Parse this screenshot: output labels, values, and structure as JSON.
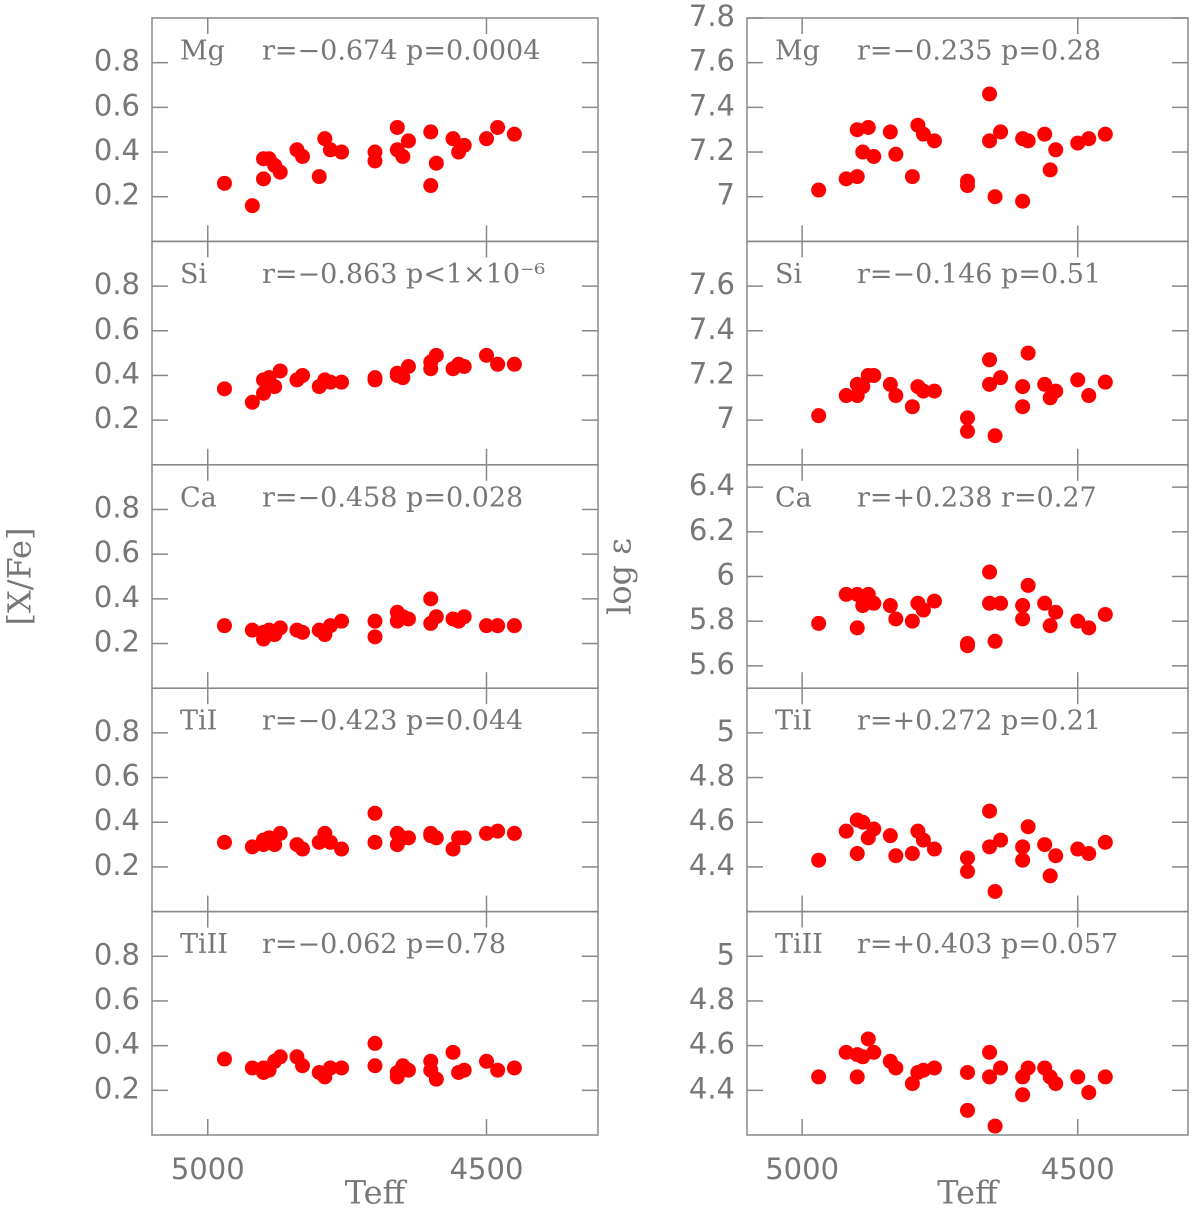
{
  "chart_data": [
    {
      "type": "scatter",
      "label": "Mg",
      "stats": "r=−0.674  p=0.0004",
      "color": "#ff0000",
      "x": [
        4970,
        4920,
        4900,
        4900,
        4890,
        4880,
        4870,
        4840,
        4830,
        4800,
        4790,
        4780,
        4760,
        4700,
        4700,
        4660,
        4660,
        4650,
        4640,
        4600,
        4600,
        4590,
        4560,
        4550,
        4540,
        4500,
        4480,
        4450
      ],
      "values": [
        0.26,
        0.16,
        0.28,
        0.37,
        0.37,
        0.34,
        0.31,
        0.41,
        0.38,
        0.29,
        0.46,
        0.41,
        0.4,
        0.4,
        0.36,
        0.51,
        0.41,
        0.38,
        0.45,
        0.49,
        0.25,
        0.35,
        0.46,
        0.4,
        0.43,
        0.46,
        0.51,
        0.48
      ],
      "xlim": [
        5100,
        4300
      ],
      "ylim": [
        0,
        1
      ],
      "xticks": [
        5000,
        4500
      ],
      "yticks": [
        0.2,
        0.4,
        0.6,
        0.8
      ]
    },
    {
      "type": "scatter",
      "label": "Si",
      "stats": "r=−0.863  p<1×10⁻⁶",
      "color": "#ff0000",
      "x": [
        4970,
        4920,
        4900,
        4900,
        4890,
        4880,
        4870,
        4840,
        4830,
        4800,
        4790,
        4780,
        4760,
        4700,
        4700,
        4660,
        4660,
        4650,
        4640,
        4600,
        4600,
        4590,
        4560,
        4550,
        4540,
        4500,
        4480,
        4450
      ],
      "values": [
        0.34,
        0.28,
        0.32,
        0.38,
        0.39,
        0.35,
        0.42,
        0.38,
        0.4,
        0.35,
        0.38,
        0.37,
        0.37,
        0.38,
        0.39,
        0.4,
        0.41,
        0.39,
        0.44,
        0.43,
        0.46,
        0.49,
        0.43,
        0.45,
        0.44,
        0.49,
        0.45,
        0.45
      ],
      "xlim": [
        5100,
        4300
      ],
      "ylim": [
        0,
        1
      ],
      "xticks": [
        5000,
        4500
      ],
      "yticks": [
        0.2,
        0.4,
        0.6,
        0.8
      ]
    },
    {
      "type": "scatter",
      "label": "Ca",
      "stats": "r=−0.458  p=0.028",
      "color": "#ff0000",
      "ylabel": "[X/Fe]",
      "x": [
        4970,
        4920,
        4900,
        4900,
        4890,
        4880,
        4870,
        4840,
        4830,
        4800,
        4790,
        4780,
        4760,
        4700,
        4700,
        4660,
        4660,
        4650,
        4640,
        4600,
        4600,
        4590,
        4560,
        4550,
        4540,
        4500,
        4480,
        4450
      ],
      "values": [
        0.28,
        0.26,
        0.22,
        0.25,
        0.26,
        0.24,
        0.27,
        0.26,
        0.25,
        0.26,
        0.24,
        0.28,
        0.3,
        0.23,
        0.3,
        0.3,
        0.34,
        0.32,
        0.31,
        0.4,
        0.29,
        0.32,
        0.31,
        0.3,
        0.32,
        0.28,
        0.28,
        0.28
      ],
      "xlim": [
        5100,
        4300
      ],
      "ylim": [
        0,
        1
      ],
      "xticks": [
        5000,
        4500
      ],
      "yticks": [
        0.2,
        0.4,
        0.6,
        0.8
      ]
    },
    {
      "type": "scatter",
      "label": "TiI",
      "stats": "r=−0.423  p=0.044",
      "color": "#ff0000",
      "x": [
        4970,
        4920,
        4900,
        4900,
        4890,
        4880,
        4870,
        4840,
        4830,
        4800,
        4790,
        4780,
        4760,
        4700,
        4700,
        4660,
        4660,
        4650,
        4640,
        4600,
        4600,
        4590,
        4560,
        4550,
        4540,
        4500,
        4480,
        4450
      ],
      "values": [
        0.31,
        0.29,
        0.3,
        0.32,
        0.33,
        0.3,
        0.35,
        0.3,
        0.28,
        0.31,
        0.35,
        0.31,
        0.28,
        0.44,
        0.31,
        0.35,
        0.3,
        0.33,
        0.33,
        0.35,
        0.34,
        0.33,
        0.28,
        0.33,
        0.33,
        0.35,
        0.36,
        0.35
      ],
      "xlim": [
        5100,
        4300
      ],
      "ylim": [
        0,
        1
      ],
      "xticks": [
        5000,
        4500
      ],
      "yticks": [
        0.2,
        0.4,
        0.6,
        0.8
      ]
    },
    {
      "type": "scatter",
      "label": "TiII",
      "stats": "r=−0.062  p=0.78",
      "color": "#ff0000",
      "xlabel": "Teff",
      "x": [
        4970,
        4920,
        4900,
        4900,
        4890,
        4880,
        4870,
        4840,
        4830,
        4800,
        4790,
        4780,
        4760,
        4700,
        4700,
        4660,
        4660,
        4650,
        4640,
        4600,
        4600,
        4590,
        4560,
        4550,
        4540,
        4500,
        4480,
        4450
      ],
      "values": [
        0.34,
        0.3,
        0.28,
        0.3,
        0.29,
        0.33,
        0.35,
        0.35,
        0.31,
        0.28,
        0.26,
        0.3,
        0.3,
        0.41,
        0.31,
        0.28,
        0.26,
        0.31,
        0.29,
        0.33,
        0.29,
        0.25,
        0.37,
        0.28,
        0.29,
        0.33,
        0.29,
        0.3
      ],
      "xlim": [
        5100,
        4300
      ],
      "ylim": [
        0,
        1
      ],
      "xticks": [
        5000,
        4500
      ],
      "yticks": [
        0.2,
        0.4,
        0.6,
        0.8
      ]
    },
    {
      "type": "scatter",
      "label": "Mg",
      "stats": "r=−0.235  p=0.28",
      "color": "#ff0000",
      "x": [
        4970,
        4920,
        4900,
        4900,
        4890,
        4880,
        4870,
        4840,
        4830,
        4800,
        4790,
        4780,
        4760,
        4700,
        4700,
        4660,
        4660,
        4650,
        4640,
        4600,
        4600,
        4590,
        4560,
        4550,
        4540,
        4500,
        4480,
        4450
      ],
      "values": [
        7.03,
        7.08,
        7.09,
        7.3,
        7.2,
        7.31,
        7.18,
        7.29,
        7.19,
        7.09,
        7.32,
        7.28,
        7.25,
        7.07,
        7.05,
        7.46,
        7.25,
        7.0,
        7.29,
        7.26,
        6.98,
        7.25,
        7.28,
        7.12,
        7.21,
        7.24,
        7.26,
        7.28
      ],
      "xlim": [
        5100,
        4300
      ],
      "ylim": [
        6.8,
        7.8
      ],
      "xticks": [
        5000,
        4500
      ],
      "yticks": [
        7,
        7.2,
        7.4,
        7.6,
        7.8
      ]
    },
    {
      "type": "scatter",
      "label": "Si",
      "stats": "r=−0.146  p=0.51",
      "color": "#ff0000",
      "x": [
        4970,
        4920,
        4900,
        4900,
        4890,
        4880,
        4870,
        4840,
        4830,
        4800,
        4790,
        4780,
        4760,
        4700,
        4700,
        4660,
        4660,
        4650,
        4640,
        4600,
        4600,
        4590,
        4560,
        4550,
        4540,
        4500,
        4480,
        4450
      ],
      "values": [
        7.02,
        7.11,
        7.11,
        7.16,
        7.15,
        7.2,
        7.2,
        7.16,
        7.11,
        7.06,
        7.15,
        7.13,
        7.13,
        7.01,
        6.95,
        7.27,
        7.16,
        6.93,
        7.19,
        7.15,
        7.06,
        7.3,
        7.16,
        7.1,
        7.13,
        7.18,
        7.11,
        7.17
      ],
      "xlim": [
        5100,
        4300
      ],
      "ylim": [
        6.8,
        7.8
      ],
      "xticks": [
        5000,
        4500
      ],
      "yticks": [
        7,
        7.2,
        7.4,
        7.6
      ]
    },
    {
      "type": "scatter",
      "label": "Ca",
      "stats": "r=+0.238  r=0.27",
      "color": "#ff0000",
      "ylabel": "log ε",
      "x": [
        4970,
        4920,
        4900,
        4900,
        4890,
        4880,
        4870,
        4840,
        4830,
        4800,
        4790,
        4780,
        4760,
        4700,
        4700,
        4660,
        4660,
        4650,
        4640,
        4600,
        4600,
        4590,
        4560,
        4550,
        4540,
        4500,
        4480,
        4450
      ],
      "values": [
        5.79,
        5.92,
        5.77,
        5.92,
        5.87,
        5.92,
        5.88,
        5.87,
        5.81,
        5.8,
        5.88,
        5.85,
        5.89,
        5.69,
        5.7,
        6.02,
        5.88,
        5.71,
        5.88,
        5.87,
        5.81,
        5.96,
        5.88,
        5.78,
        5.84,
        5.8,
        5.77,
        5.83
      ],
      "xlim": [
        5100,
        4300
      ],
      "ylim": [
        5.5,
        6.5
      ],
      "xticks": [
        5000,
        4500
      ],
      "yticks": [
        5.6,
        5.8,
        6,
        6.2,
        6.4
      ]
    },
    {
      "type": "scatter",
      "label": "TiI",
      "stats": "r=+0.272  p=0.21",
      "color": "#ff0000",
      "x": [
        4970,
        4920,
        4900,
        4900,
        4890,
        4880,
        4870,
        4840,
        4830,
        4800,
        4790,
        4780,
        4760,
        4700,
        4700,
        4660,
        4660,
        4650,
        4640,
        4600,
        4600,
        4590,
        4560,
        4550,
        4540,
        4500,
        4480,
        4450
      ],
      "values": [
        4.43,
        4.56,
        4.46,
        4.61,
        4.6,
        4.53,
        4.57,
        4.54,
        4.45,
        4.46,
        4.56,
        4.52,
        4.48,
        4.44,
        4.38,
        4.65,
        4.49,
        4.29,
        4.52,
        4.49,
        4.43,
        4.58,
        4.5,
        4.36,
        4.45,
        4.48,
        4.46,
        4.51
      ],
      "xlim": [
        5100,
        4300
      ],
      "ylim": [
        4.2,
        5.2
      ],
      "xticks": [
        5000,
        4500
      ],
      "yticks": [
        4.4,
        4.6,
        4.8,
        5
      ]
    },
    {
      "type": "scatter",
      "label": "TiII",
      "stats": "r=+0.403  p=0.057",
      "color": "#ff0000",
      "xlabel": "Teff",
      "x": [
        4970,
        4920,
        4900,
        4900,
        4890,
        4880,
        4870,
        4840,
        4830,
        4800,
        4790,
        4780,
        4760,
        4700,
        4700,
        4660,
        4660,
        4650,
        4640,
        4600,
        4600,
        4590,
        4560,
        4550,
        4540,
        4500,
        4480,
        4450
      ],
      "values": [
        4.46,
        4.57,
        4.46,
        4.56,
        4.55,
        4.63,
        4.57,
        4.53,
        4.5,
        4.43,
        4.48,
        4.49,
        4.5,
        4.48,
        4.31,
        4.57,
        4.46,
        4.24,
        4.5,
        4.46,
        4.38,
        4.5,
        4.5,
        4.46,
        4.43,
        4.46,
        4.39,
        4.46
      ],
      "xlim": [
        5100,
        4300
      ],
      "ylim": [
        4.2,
        5.2
      ],
      "xticks": [
        5000,
        4500
      ],
      "yticks": [
        4.4,
        4.6,
        4.8,
        5
      ]
    }
  ]
}
